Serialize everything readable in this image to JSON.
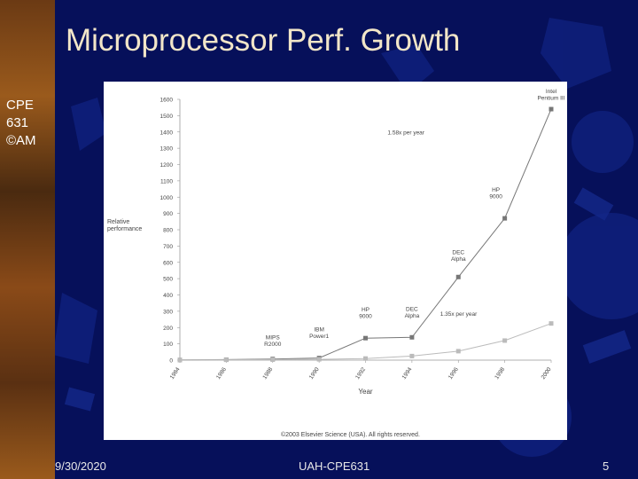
{
  "slide": {
    "title": "Microprocessor Perf. Growth",
    "side_label": "CPE\n631\n©AM",
    "footer_date": "9/30/2020",
    "footer_center": "UAH-CPE631",
    "footer_page": "5"
  },
  "chart_data": {
    "type": "line",
    "title": "",
    "xlabel": "Year",
    "ylabel": "Relative performance",
    "xlim": [
      1984,
      2000
    ],
    "ylim": [
      0,
      1600
    ],
    "xticks": [
      "1984",
      "1986",
      "1988",
      "1990",
      "1992",
      "1994",
      "1996",
      "1998",
      "2000"
    ],
    "yticks": [
      "0",
      "100",
      "200",
      "300",
      "400",
      "500",
      "600",
      "700",
      "800",
      "900",
      "1000",
      "1100",
      "1200",
      "1300",
      "1400",
      "1500",
      "1600"
    ],
    "series": [
      {
        "color": "#777777",
        "points": [
          {
            "x": 1984,
            "y": 1
          },
          {
            "x": 1986,
            "y": 3
          },
          {
            "x": 1988,
            "y": 7
          },
          {
            "x": 1990,
            "y": 13
          },
          {
            "x": 1992,
            "y": 135
          },
          {
            "x": 1994,
            "y": 140
          },
          {
            "x": 1996,
            "y": 510
          },
          {
            "x": 1998,
            "y": 870
          },
          {
            "x": 2000,
            "y": 1540
          }
        ]
      },
      {
        "color": "#bbbbbb",
        "points": [
          {
            "x": 1984,
            "y": 1
          },
          {
            "x": 1986,
            "y": 2
          },
          {
            "x": 1988,
            "y": 3
          },
          {
            "x": 1990,
            "y": 5
          },
          {
            "x": 1992,
            "y": 10
          },
          {
            "x": 1994,
            "y": 25
          },
          {
            "x": 1996,
            "y": 55
          },
          {
            "x": 1998,
            "y": 120
          },
          {
            "x": 2000,
            "y": 225
          }
        ]
      }
    ],
    "annotations": [
      {
        "lines": [
          "MIPS",
          "R2000"
        ],
        "x": 1988,
        "y": 7
      },
      {
        "lines": [
          "IBM",
          "Power1"
        ],
        "x": 1990,
        "y": 13
      },
      {
        "lines": [
          "HP",
          "9000"
        ],
        "x": 1992,
        "y": 135
      },
      {
        "lines": [
          "DEC",
          "Alpha"
        ],
        "x": 1994,
        "y": 140
      },
      {
        "lines": [
          "DEC",
          "Alpha"
        ],
        "x": 1996,
        "y": 510
      },
      {
        "lines": [
          "HP",
          "9000"
        ],
        "x": 1998,
        "y": 870
      },
      {
        "lines": [
          "Intel",
          "Pentium III"
        ],
        "x": 2000,
        "y": 1540
      },
      {
        "lines": [
          "1.58x per year"
        ],
        "x": 1996.8,
        "y": 1320
      },
      {
        "lines": [
          "1.35x per year"
        ],
        "x": 1998.3,
        "y": 240
      }
    ],
    "copyright": "©2003 Elsevier Science (USA). All rights reserved."
  }
}
